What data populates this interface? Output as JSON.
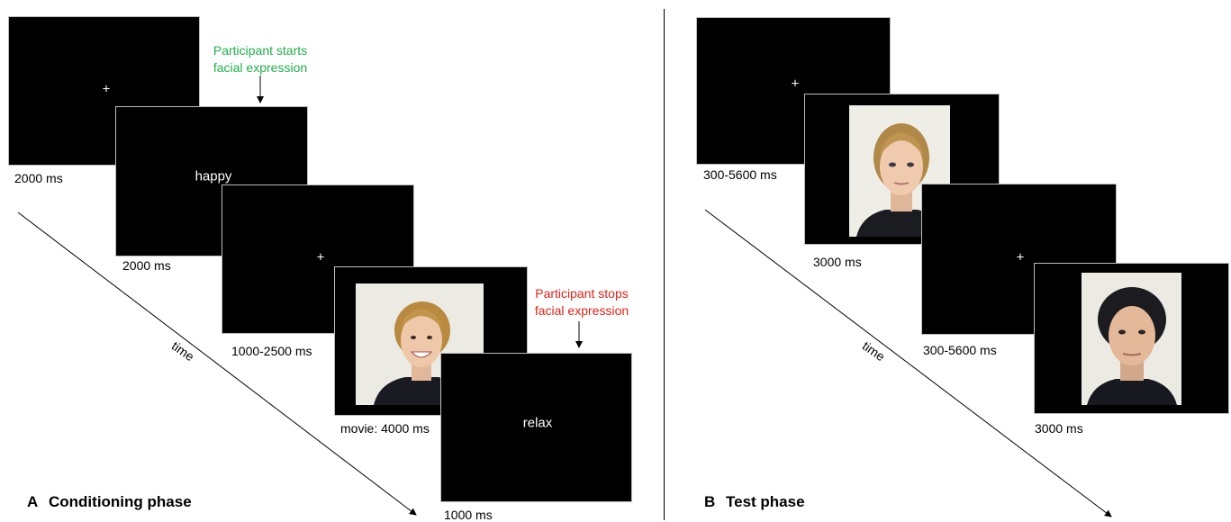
{
  "panel_a": {
    "letter": "A",
    "title": "Conditioning phase",
    "time_label": "time",
    "screens": {
      "fixation1": {
        "symbol": "+",
        "duration": "2000 ms"
      },
      "cue": {
        "word": "happy",
        "duration": "2000 ms"
      },
      "fixation2": {
        "symbol": "+",
        "duration": "1000-2500 ms"
      },
      "movie": {
        "duration": "movie: 4000 ms"
      },
      "relax": {
        "word": "relax",
        "duration": "1000 ms"
      }
    },
    "start_note": {
      "line1": "Participant starts",
      "line2": "facial expression",
      "color": "#21b04b"
    },
    "stop_note": {
      "line1": "Participant stops",
      "line2": "facial expression",
      "color": "#e2231a"
    }
  },
  "panel_b": {
    "letter": "B",
    "title": "Test phase",
    "time_label": "time",
    "screens": {
      "fixation1": {
        "symbol": "+",
        "duration": "300-5600 ms"
      },
      "face1": {
        "duration": "3000 ms"
      },
      "fixation2": {
        "symbol": "+",
        "duration": "300-5600 ms"
      },
      "face2": {
        "duration": "3000 ms"
      }
    }
  }
}
